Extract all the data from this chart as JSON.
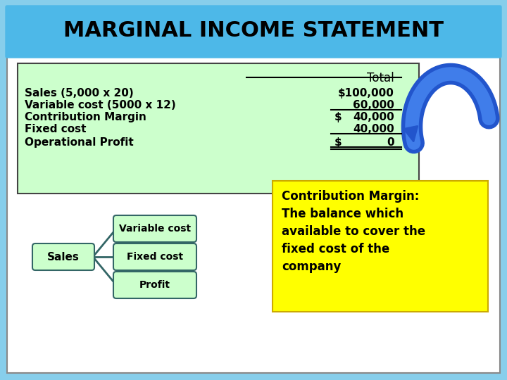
{
  "title": "MARGINAL INCOME STATEMENT",
  "title_bg": "#4db8e8",
  "main_bg": "#87ceeb",
  "table_bg": "#ccffcc",
  "table_border": "#444444",
  "table_header": "Total",
  "rows": [
    {
      "label": "Sales (5,000 x 20)",
      "value": "$100,000",
      "prefix": ""
    },
    {
      "label": "Variable cost (5000 x 12)",
      "value": "60,000",
      "prefix": ""
    },
    {
      "label": "Contribution Margin",
      "value": "40,000",
      "prefix": "$ "
    },
    {
      "label": "Fixed cost",
      "value": "40,000",
      "prefix": ""
    },
    {
      "label": "Operational Profit",
      "value": "0",
      "prefix": "$ "
    }
  ],
  "underline_rows": [
    1,
    3,
    4
  ],
  "double_underline_row": 4,
  "box_labels": [
    "Variable cost",
    "Fixed cost",
    "Profit"
  ],
  "left_label": "Sales",
  "arrow_color": "#2255cc",
  "note_bg": "#ffff00",
  "note_text": "Contribution Margin:\nThe balance which\navailable to cover the\nfixed cost of the\ncompany",
  "node_bg": "#ccffcc",
  "node_border": "#336666"
}
